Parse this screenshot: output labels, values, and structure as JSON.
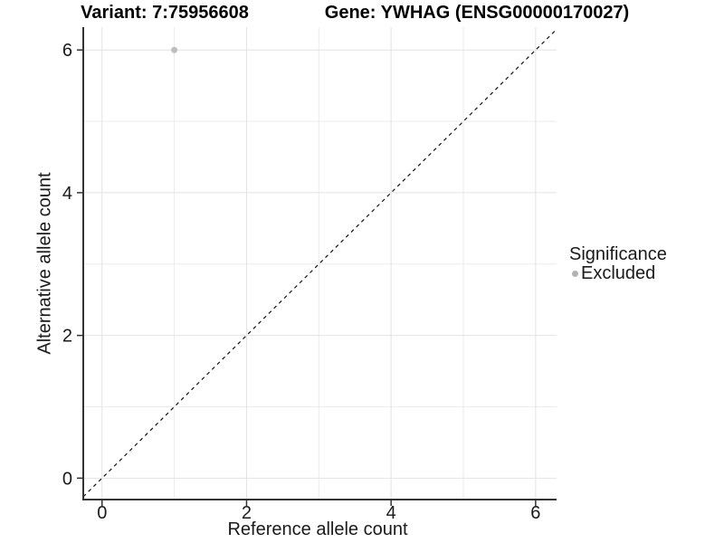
{
  "chart_data": {
    "type": "scatter",
    "title_left": "Variant: 7:75956608",
    "title_right": "Gene: YWHAG (ENSG00000170027)",
    "xlabel": "Reference allele count",
    "ylabel": "Alternative allele count",
    "xlim": [
      -0.26,
      6.29
    ],
    "ylim": [
      -0.3,
      6.32
    ],
    "x_major_ticks": [
      0,
      2,
      4,
      6
    ],
    "y_major_ticks": [
      0,
      2,
      4,
      6
    ],
    "x_minor_gridlines": [
      1,
      3,
      5
    ],
    "y_minor_gridlines": [
      1,
      3,
      5
    ],
    "grid": true,
    "series": [
      {
        "name": "Excluded",
        "color": "#bebebe",
        "points": [
          {
            "x": 1,
            "y": 6
          }
        ]
      }
    ],
    "reference_line": {
      "kind": "identity",
      "style": "dashed",
      "color": "#111111"
    },
    "legend": {
      "title": "Significance",
      "position": "right",
      "items": [
        {
          "label": "Excluded",
          "color": "#b3b3b3"
        }
      ]
    }
  },
  "colors": {
    "background": "#ffffff",
    "grid_major": "#e2e2e2",
    "grid_minor": "#ebebeb",
    "axis_line": "#333333",
    "tick_mark": "#333333",
    "tick_text": "#1a1a1a"
  }
}
